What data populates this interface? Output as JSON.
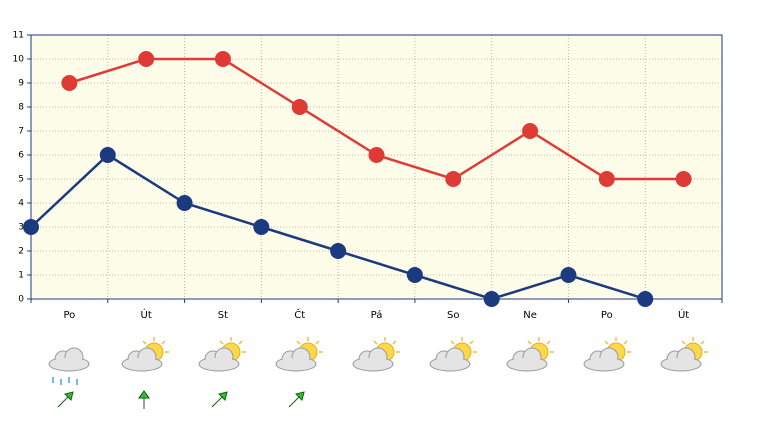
{
  "chart_data": {
    "type": "line",
    "categories": [
      "Po",
      "Út",
      "St",
      "Čt",
      "Pá",
      "So",
      "Ne",
      "Po",
      "Út"
    ],
    "xlim": [
      0,
      9
    ],
    "series": [
      {
        "color": "#e03a36",
        "x": [
          0.5,
          1.5,
          2.5,
          3.5,
          4.5,
          5.5,
          6.5,
          7.5,
          8.5
        ],
        "values": [
          9,
          10,
          10,
          8,
          6,
          5,
          7,
          5,
          5
        ]
      },
      {
        "color": "#1c3a80",
        "x": [
          0,
          1,
          2,
          3,
          4,
          5,
          6,
          7,
          8
        ],
        "values": [
          3,
          6,
          4,
          3,
          2,
          1,
          0,
          1,
          0
        ]
      }
    ],
    "ylim": [
      0,
      11
    ],
    "yticks": [
      0,
      1,
      2,
      3,
      4,
      5,
      6,
      7,
      8,
      9,
      10,
      11
    ],
    "grid": true
  }
}
